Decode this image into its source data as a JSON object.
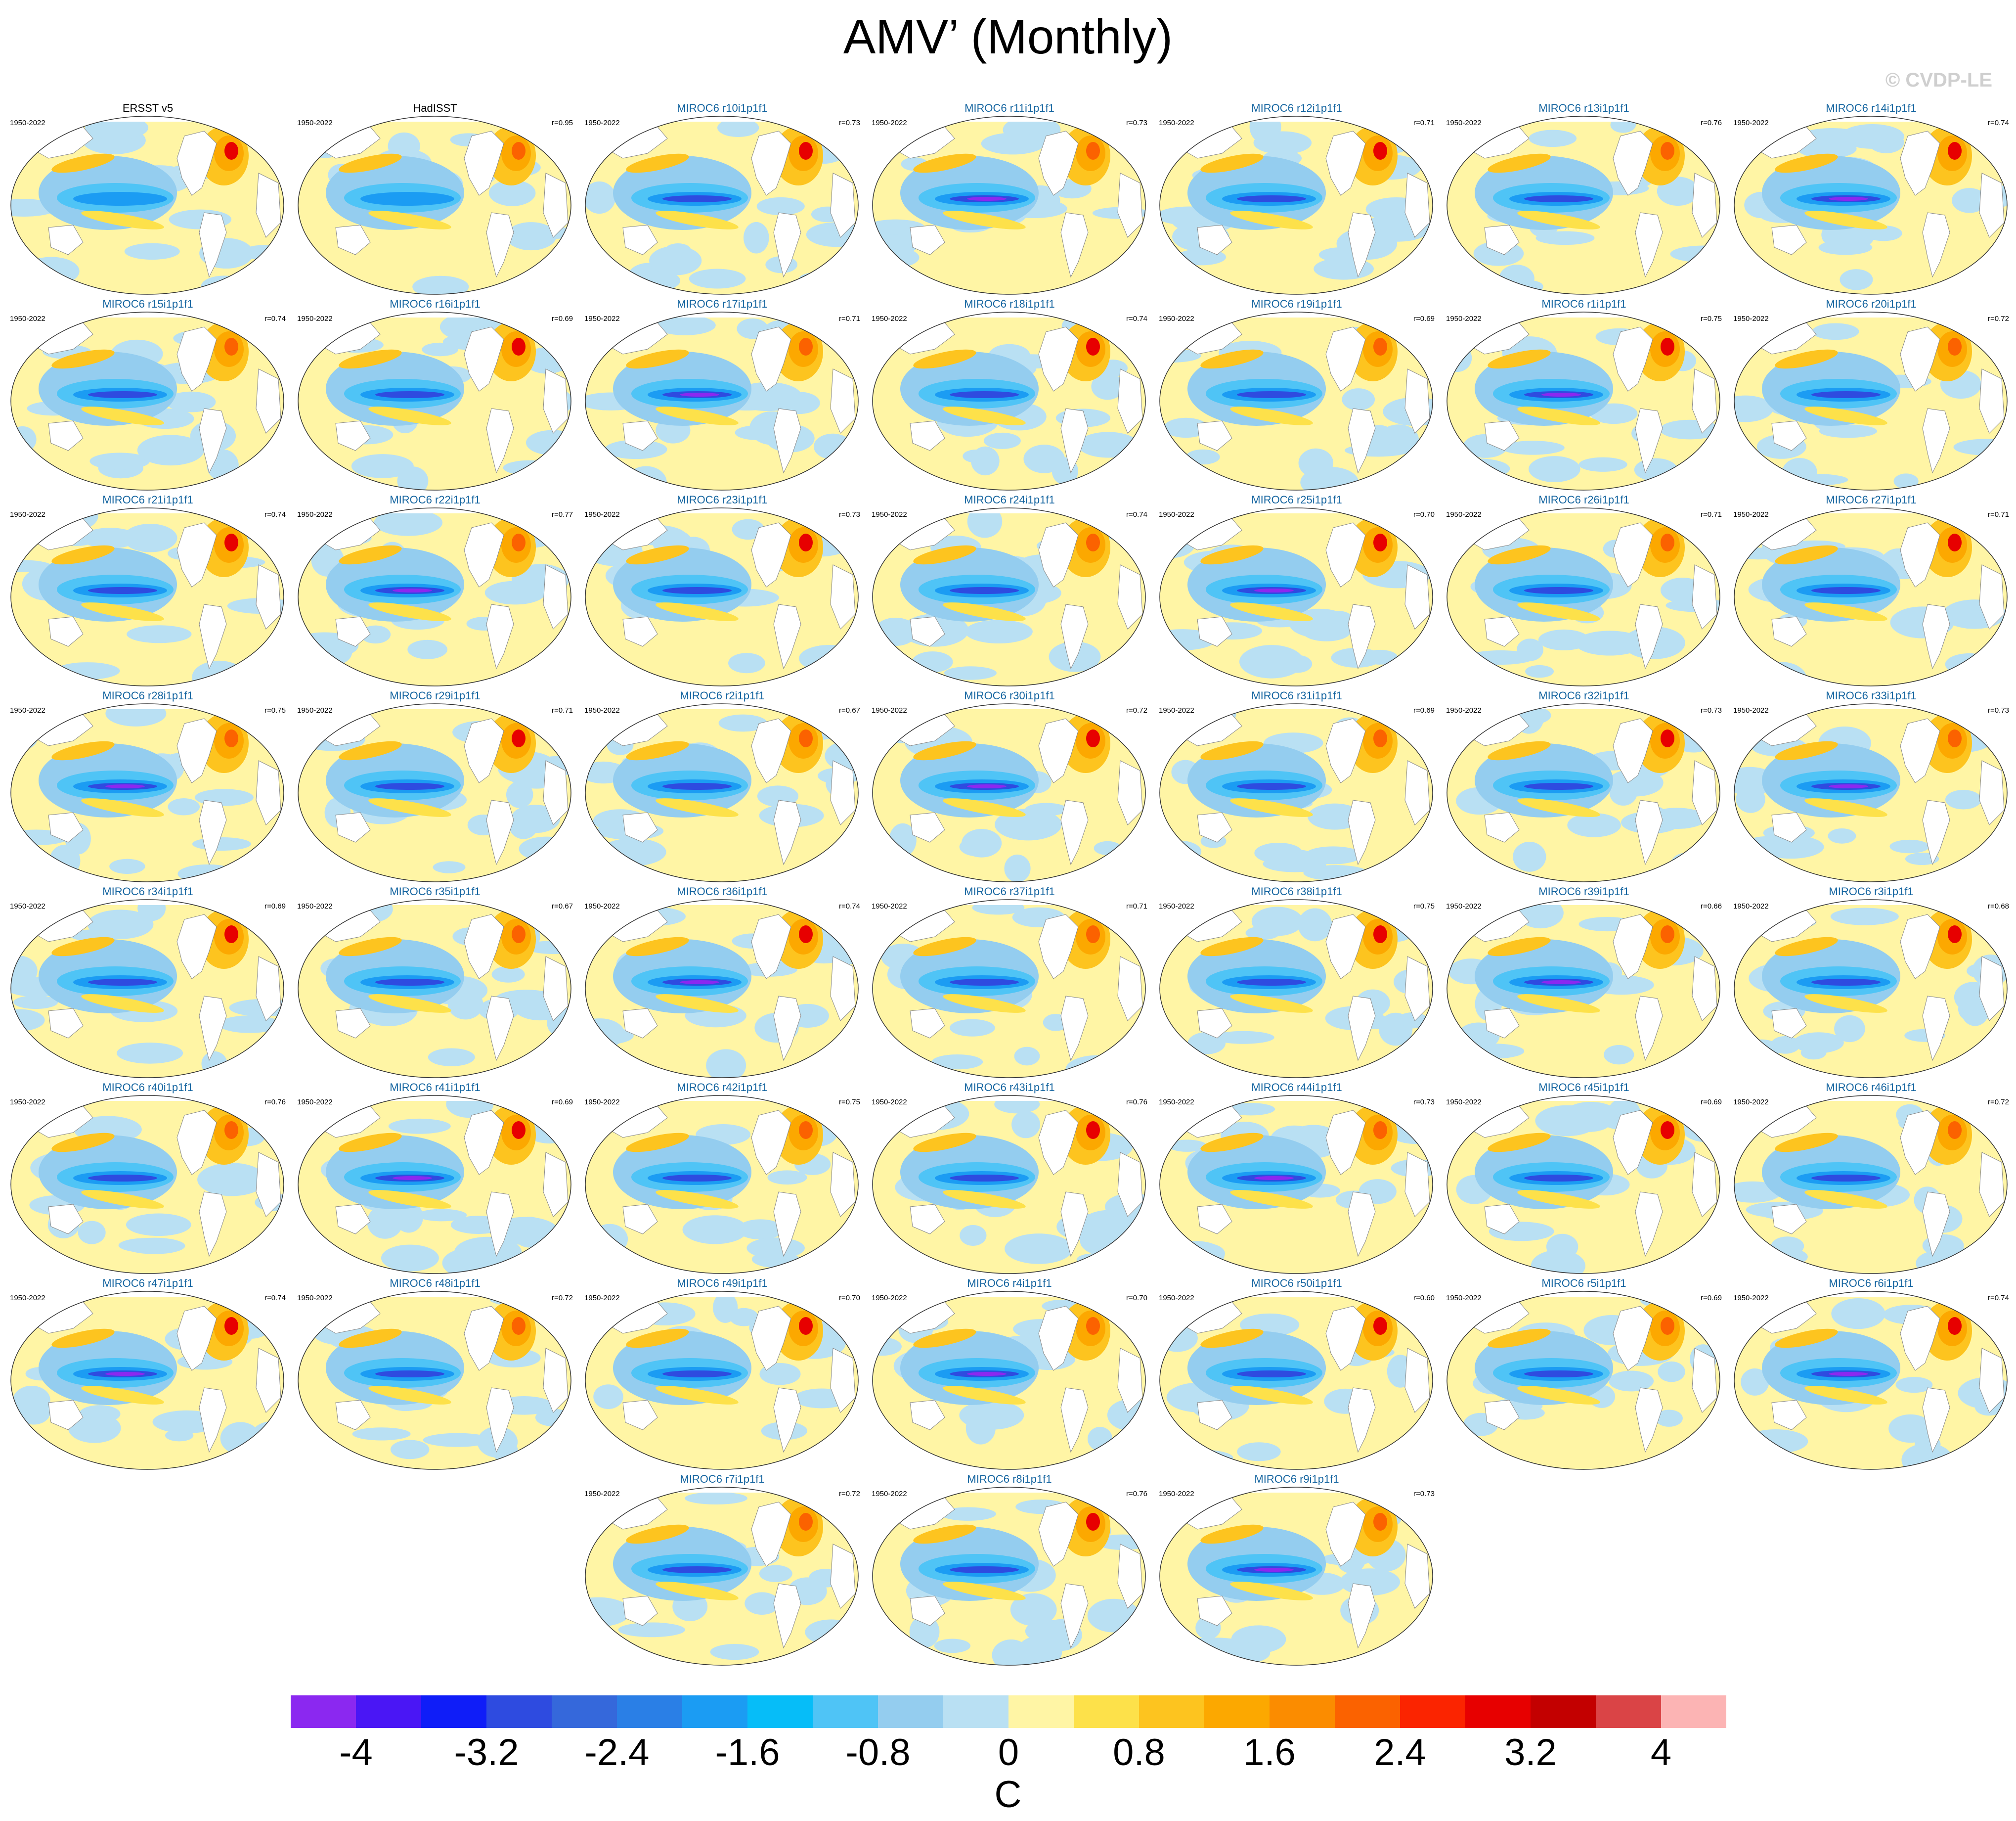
{
  "title": "AMV’ (Monthly)",
  "copyright": "© CVDP-LE",
  "period": "1950-2022",
  "panels": [
    {
      "name": "ERSST v5",
      "r": "",
      "obs": true
    },
    {
      "name": "HadISST",
      "r": "r=0.95",
      "obs": true
    },
    {
      "name": "MIROC6 r10i1p1f1",
      "r": "r=0.73"
    },
    {
      "name": "MIROC6 r11i1p1f1",
      "r": "r=0.73"
    },
    {
      "name": "MIROC6 r12i1p1f1",
      "r": "r=0.71"
    },
    {
      "name": "MIROC6 r13i1p1f1",
      "r": "r=0.76"
    },
    {
      "name": "MIROC6 r14i1p1f1",
      "r": "r=0.74"
    },
    {
      "name": "MIROC6 r15i1p1f1",
      "r": "r=0.74"
    },
    {
      "name": "MIROC6 r16i1p1f1",
      "r": "r=0.69"
    },
    {
      "name": "MIROC6 r17i1p1f1",
      "r": "r=0.71"
    },
    {
      "name": "MIROC6 r18i1p1f1",
      "r": "r=0.74"
    },
    {
      "name": "MIROC6 r19i1p1f1",
      "r": "r=0.69"
    },
    {
      "name": "MIROC6 r1i1p1f1",
      "r": "r=0.75"
    },
    {
      "name": "MIROC6 r20i1p1f1",
      "r": "r=0.72"
    },
    {
      "name": "MIROC6 r21i1p1f1",
      "r": "r=0.74"
    },
    {
      "name": "MIROC6 r22i1p1f1",
      "r": "r=0.77"
    },
    {
      "name": "MIROC6 r23i1p1f1",
      "r": "r=0.73"
    },
    {
      "name": "MIROC6 r24i1p1f1",
      "r": "r=0.74"
    },
    {
      "name": "MIROC6 r25i1p1f1",
      "r": "r=0.70"
    },
    {
      "name": "MIROC6 r26i1p1f1",
      "r": "r=0.71"
    },
    {
      "name": "MIROC6 r27i1p1f1",
      "r": "r=0.71"
    },
    {
      "name": "MIROC6 r28i1p1f1",
      "r": "r=0.75"
    },
    {
      "name": "MIROC6 r29i1p1f1",
      "r": "r=0.71"
    },
    {
      "name": "MIROC6 r2i1p1f1",
      "r": "r=0.67"
    },
    {
      "name": "MIROC6 r30i1p1f1",
      "r": "r=0.72"
    },
    {
      "name": "MIROC6 r31i1p1f1",
      "r": "r=0.69"
    },
    {
      "name": "MIROC6 r32i1p1f1",
      "r": "r=0.73"
    },
    {
      "name": "MIROC6 r33i1p1f1",
      "r": "r=0.73"
    },
    {
      "name": "MIROC6 r34i1p1f1",
      "r": "r=0.69"
    },
    {
      "name": "MIROC6 r35i1p1f1",
      "r": "r=0.67"
    },
    {
      "name": "MIROC6 r36i1p1f1",
      "r": "r=0.74"
    },
    {
      "name": "MIROC6 r37i1p1f1",
      "r": "r=0.71"
    },
    {
      "name": "MIROC6 r38i1p1f1",
      "r": "r=0.75"
    },
    {
      "name": "MIROC6 r39i1p1f1",
      "r": "r=0.66"
    },
    {
      "name": "MIROC6 r3i1p1f1",
      "r": "r=0.68"
    },
    {
      "name": "MIROC6 r40i1p1f1",
      "r": "r=0.76"
    },
    {
      "name": "MIROC6 r41i1p1f1",
      "r": "r=0.69"
    },
    {
      "name": "MIROC6 r42i1p1f1",
      "r": "r=0.75"
    },
    {
      "name": "MIROC6 r43i1p1f1",
      "r": "r=0.76"
    },
    {
      "name": "MIROC6 r44i1p1f1",
      "r": "r=0.73"
    },
    {
      "name": "MIROC6 r45i1p1f1",
      "r": "r=0.69"
    },
    {
      "name": "MIROC6 r46i1p1f1",
      "r": "r=0.72"
    },
    {
      "name": "MIROC6 r47i1p1f1",
      "r": "r=0.74"
    },
    {
      "name": "MIROC6 r48i1p1f1",
      "r": "r=0.72"
    },
    {
      "name": "MIROC6 r49i1p1f1",
      "r": "r=0.70"
    },
    {
      "name": "MIROC6 r4i1p1f1",
      "r": "r=0.70"
    },
    {
      "name": "MIROC6 r50i1p1f1",
      "r": "r=0.60"
    },
    {
      "name": "MIROC6 r5i1p1f1",
      "r": "r=0.69"
    },
    {
      "name": "MIROC6 r6i1p1f1",
      "r": "r=0.74"
    },
    {
      "name": "MIROC6 r7i1p1f1",
      "r": "r=0.72"
    },
    {
      "name": "MIROC6 r8i1p1f1",
      "r": "r=0.76"
    },
    {
      "name": "MIROC6 r9i1p1f1",
      "r": "r=0.73"
    }
  ],
  "colorbar": {
    "colors": [
      "#8b28f0",
      "#4a16f5",
      "#0f1df8",
      "#2e4be0",
      "#3568db",
      "#2a7fe6",
      "#1b9cf3",
      "#06bdf8",
      "#4fc4f6",
      "#94cdef",
      "#b9e0f3",
      "#fff5a5",
      "#fde14a",
      "#fdc41f",
      "#fca800",
      "#fb8c00",
      "#fb6200",
      "#fb2400",
      "#e70000",
      "#c30000",
      "#da4446",
      "#fcb4b4"
    ],
    "labels": [
      "-4",
      "-3.2",
      "-2.4",
      "-1.6",
      "-0.8",
      "0",
      "0.8",
      "1.6",
      "2.4",
      "3.2",
      "4"
    ],
    "unit": "C"
  }
}
